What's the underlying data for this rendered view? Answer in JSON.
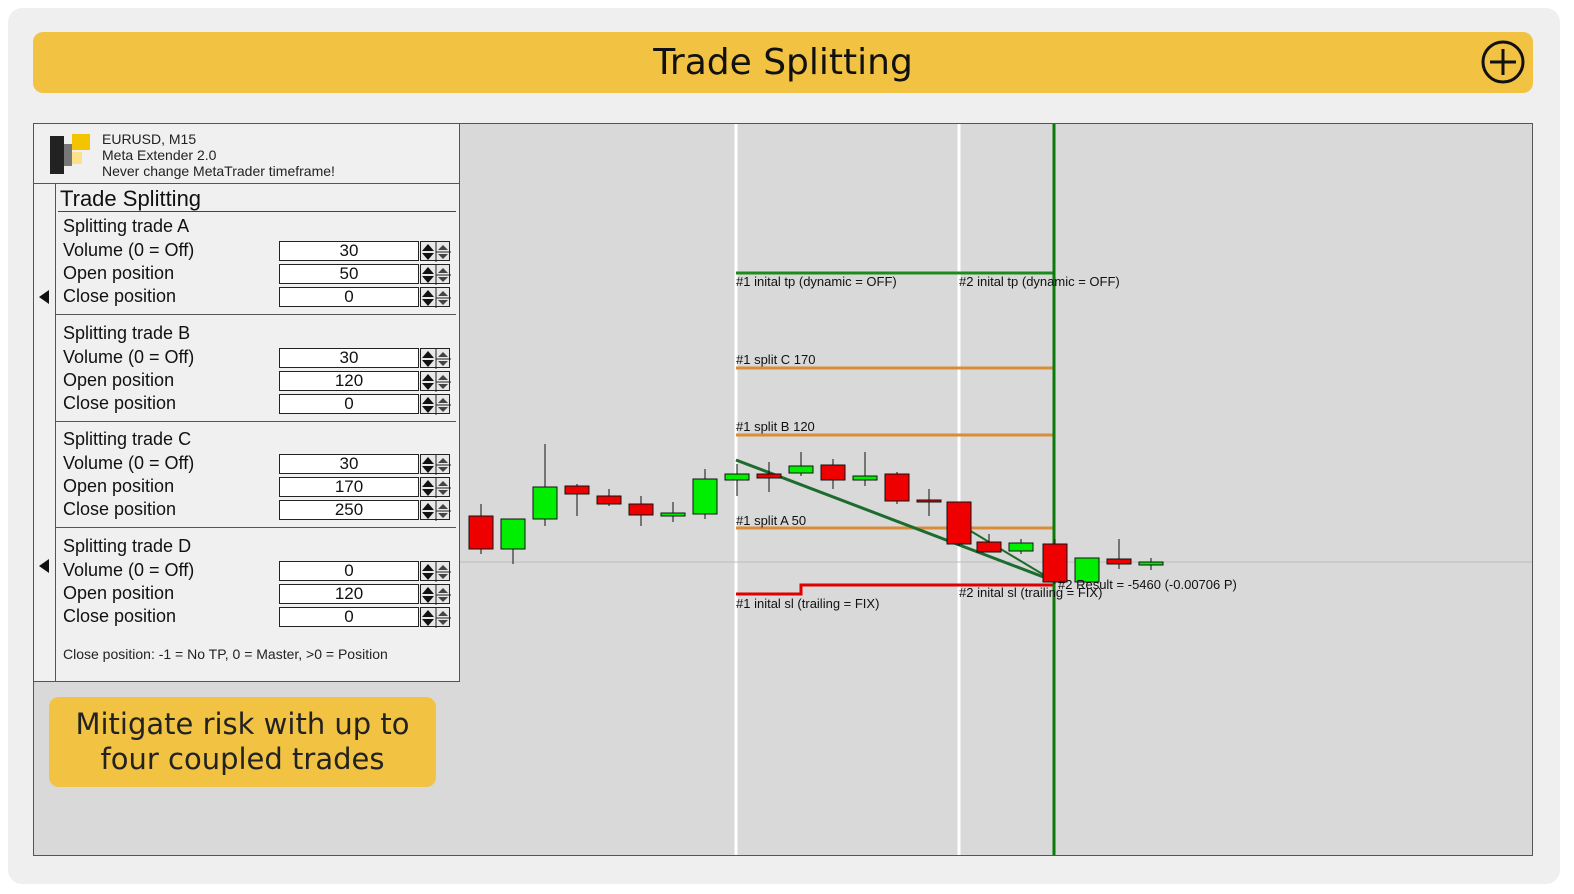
{
  "banner": {
    "title": "Trade Splitting",
    "add_icon": "plus-circle-icon"
  },
  "panel": {
    "header_lines": [
      "EURUSD, M15",
      "Meta Extender 2.0",
      "Never change MetaTrader timeframe!"
    ],
    "logo_icon": "meta-extender-logo",
    "title": "Trade Splitting",
    "groups": [
      {
        "title": "Splitting trade A",
        "rows": [
          {
            "label": "Volume (0 = Off)",
            "value": "30"
          },
          {
            "label": "Open position",
            "value": "50"
          },
          {
            "label": "Close position",
            "value": "0"
          }
        ]
      },
      {
        "title": "Splitting trade B",
        "rows": [
          {
            "label": "Volume (0 = Off)",
            "value": "30"
          },
          {
            "label": "Open position",
            "value": "120"
          },
          {
            "label": "Close position",
            "value": "0"
          }
        ]
      },
      {
        "title": "Splitting trade C",
        "rows": [
          {
            "label": "Volume (0 = Off)",
            "value": "30"
          },
          {
            "label": "Open position",
            "value": "170"
          },
          {
            "label": "Close position",
            "value": "250"
          }
        ]
      },
      {
        "title": "Splitting trade D",
        "rows": [
          {
            "label": "Volume (0 = Off)",
            "value": "0"
          },
          {
            "label": "Open position",
            "value": "120"
          },
          {
            "label": "Close position",
            "value": "0"
          }
        ]
      }
    ],
    "note": "Close position: -1 = No TP, 0 = Master, >0 = Position",
    "collapse_icons": [
      "collapse-left-arrow-icon",
      "collapse-left-arrow-icon"
    ]
  },
  "callout": {
    "line1": "Mitigate risk with up to",
    "line2": "four coupled trades"
  },
  "chart": {
    "labels": {
      "tp1": "#1 inital tp (dynamic = OFF)",
      "tp2": "#2 inital tp (dynamic = OFF)",
      "splitC": "#1 split C 170",
      "splitB": "#1 split B 120",
      "splitA": "#1 split A 50",
      "sl1": "#1 inital sl (trailing = FIX)",
      "sl2": "#2 inital sl (trailing = FIX)",
      "result": "#2 Result = -5460 (-0.00706 P)"
    },
    "colors": {
      "bull": "#00ee00",
      "bear": "#ee0000",
      "tp": "#1e8a1e",
      "split": "#d98c3a",
      "sl": "#e00000",
      "trend": "#1e6b2e",
      "vline": "#ffffff",
      "cursor": "#0b7a0b"
    }
  }
}
